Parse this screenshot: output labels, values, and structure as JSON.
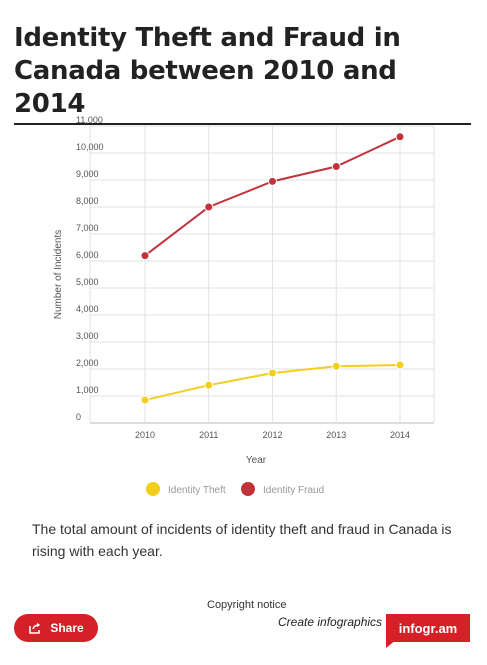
{
  "header": {
    "title_line1": "Identity Theft and Fraud in",
    "title_line2": "Canada between 2010 and 2014"
  },
  "chart_data": {
    "type": "line",
    "title": "Identity Theft and Fraud in Canada between 2010 and 2014",
    "xlabel": "Year",
    "ylabel": "Number of Incidents",
    "x": [
      "2010",
      "2011",
      "2012",
      "2013",
      "2014"
    ],
    "ylim": [
      0,
      11000
    ],
    "yticks": [
      "0",
      "1,000",
      "2,000",
      "3,000",
      "4,000",
      "5,000",
      "6,000",
      "7,000",
      "8,000",
      "9,000",
      "10,000",
      "11,000"
    ],
    "grid": true,
    "legend_position": "bottom",
    "series": [
      {
        "name": "Identity Theft",
        "color": "#f2cf1d",
        "values": [
          850,
          1400,
          1850,
          2100,
          2150
        ]
      },
      {
        "name": "Identity Fraud",
        "color": "#c1333a",
        "values": [
          6200,
          8000,
          8950,
          9500,
          10600
        ]
      }
    ]
  },
  "description": "The total amount of incidents of identity theft and fraud in Canada is rising with each year.",
  "footer": {
    "copyright": "Copyright notice",
    "share_label": "Share",
    "share_icon": "share-icon",
    "create_label": "Create infographics",
    "brand": "infogr.am"
  }
}
